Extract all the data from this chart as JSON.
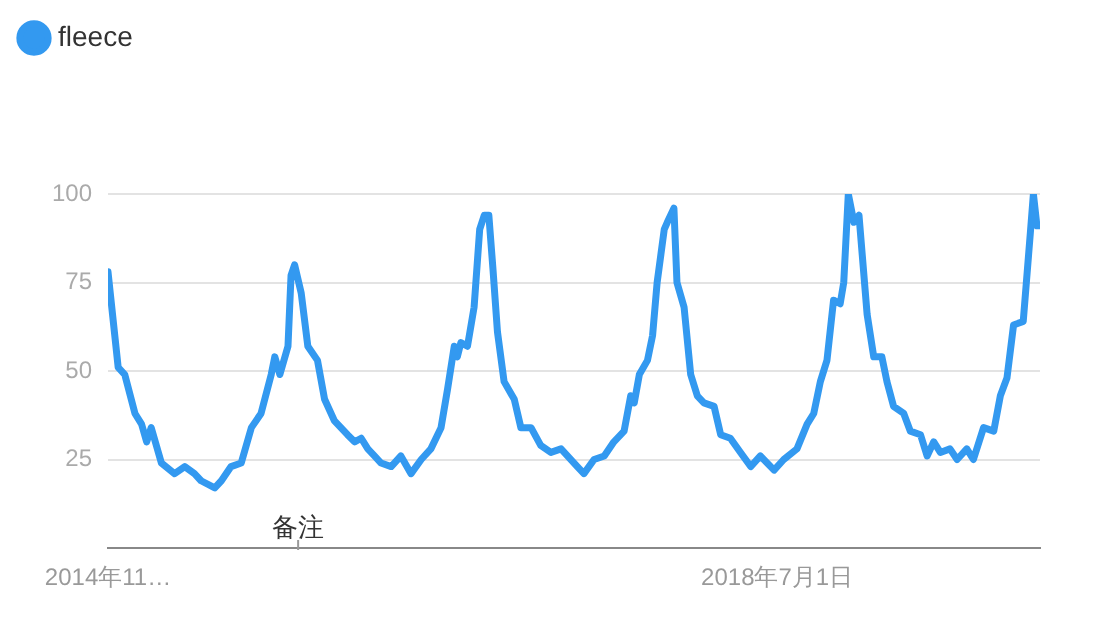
{
  "chart_data": {
    "type": "line",
    "legend": "top left",
    "grid": "y",
    "marker": "none",
    "line_style": "solid",
    "xlim": [
      "2014-11-23",
      "2019-11-30"
    ],
    "ylim": [
      0,
      100
    ],
    "yticks": [
      25,
      50,
      75,
      100
    ],
    "xticks": [
      {
        "value": "2014-11-23",
        "label": "2014年11…"
      },
      {
        "value": "2018-07-01",
        "label": "2018年7月1日"
      }
    ],
    "annotations": [
      "备注"
    ],
    "series": [
      {
        "name": "fleece",
        "color": "#3399f0",
        "x": [
          "2014-11-23",
          "2014-12-13",
          "2014-12-26",
          "2015-01-15",
          "2015-01-28",
          "2015-02-07",
          "2015-02-16",
          "2015-03-08",
          "2015-04-03",
          "2015-04-23",
          "2015-05-12",
          "2015-05-25",
          "2015-06-21",
          "2015-07-04",
          "2015-07-23",
          "2015-08-12",
          "2015-09-01",
          "2015-09-20",
          "2015-10-10",
          "2015-10-17",
          "2015-10-27",
          "2015-11-12",
          "2015-11-18",
          "2015-11-25",
          "2015-12-08",
          "2015-12-21",
          "2016-01-09",
          "2016-01-23",
          "2016-02-11",
          "2016-03-08",
          "2016-03-22",
          "2016-04-04",
          "2016-04-17",
          "2016-04-30",
          "2016-05-13",
          "2016-06-02",
          "2016-06-21",
          "2016-07-11",
          "2016-07-31",
          "2016-08-19",
          "2016-09-08",
          "2016-09-21",
          "2016-10-04",
          "2016-10-10",
          "2016-10-17",
          "2016-10-30",
          "2016-11-12",
          "2016-11-23",
          "2016-12-02",
          "2016-12-11",
          "2016-12-19",
          "2016-12-28",
          "2017-01-10",
          "2017-01-30",
          "2017-02-12",
          "2017-03-04",
          "2017-03-23",
          "2017-04-12",
          "2017-05-02",
          "2017-06-03",
          "2017-06-16",
          "2017-07-06",
          "2017-07-26",
          "2017-08-14",
          "2017-09-03",
          "2017-09-16",
          "2017-09-23",
          "2017-10-03",
          "2017-10-19",
          "2017-10-29",
          "2017-11-07",
          "2017-11-21",
          "2017-11-27",
          "2017-12-10",
          "2017-12-16",
          "2017-12-30",
          "2018-01-12",
          "2018-01-25",
          "2018-02-07",
          "2018-02-27",
          "2018-03-12",
          "2018-03-31",
          "2018-04-20",
          "2018-05-10",
          "2018-05-29",
          "2018-06-25",
          "2018-07-14",
          "2018-08-09",
          "2018-08-29",
          "2018-09-11",
          "2018-09-24",
          "2018-10-07",
          "2018-10-20",
          "2018-11-02",
          "2018-11-09",
          "2018-11-18",
          "2018-11-29",
          "2018-12-09",
          "2018-12-25",
          "2019-01-07",
          "2019-01-23",
          "2019-02-02",
          "2019-02-15",
          "2019-03-07",
          "2019-03-20",
          "2019-04-09",
          "2019-04-22",
          "2019-05-05",
          "2019-05-18",
          "2019-06-06",
          "2019-06-20",
          "2019-07-09",
          "2019-07-22",
          "2019-08-11",
          "2019-08-31",
          "2019-09-13",
          "2019-09-26",
          "2019-10-09",
          "2019-10-28",
          "2019-11-11",
          "2019-11-17",
          "2019-11-24",
          "2019-11-30"
        ],
        "values": [
          78,
          51,
          49,
          38,
          35,
          30,
          34,
          24,
          21,
          23,
          21,
          19,
          17,
          19,
          23,
          24,
          34,
          38,
          49,
          54,
          49,
          57,
          77,
          80,
          72,
          57,
          53,
          42,
          36,
          32,
          30,
          31,
          28,
          26,
          24,
          23,
          26,
          21,
          25,
          28,
          34,
          45,
          57,
          54,
          58,
          57,
          68,
          90,
          94,
          94,
          79,
          61,
          47,
          42,
          34,
          34,
          29,
          27,
          28,
          23,
          21,
          25,
          26,
          30,
          33,
          43,
          41,
          49,
          53,
          60,
          75,
          90,
          92,
          96,
          75,
          68,
          49,
          43,
          41,
          40,
          32,
          31,
          27,
          23,
          26,
          22,
          25,
          28,
          35,
          38,
          47,
          53,
          70,
          69,
          75,
          100,
          92,
          94,
          66,
          54,
          54,
          47,
          40,
          38,
          33,
          32,
          26,
          30,
          27,
          28,
          25,
          28,
          25,
          34,
          33,
          43,
          48,
          63,
          64,
          89,
          100,
          91,
          91
        ]
      }
    ]
  }
}
